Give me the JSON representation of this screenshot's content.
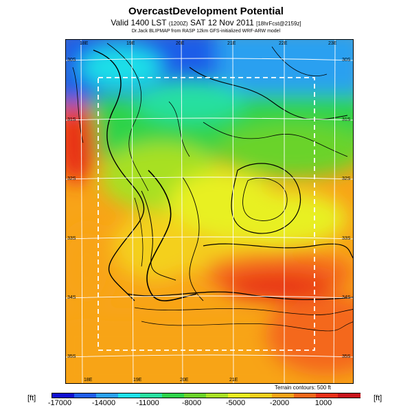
{
  "header": {
    "title": "OvercastDevelopment Potential",
    "subtitle_main": "Valid 1400 LST",
    "subtitle_small1": "(1200Z)",
    "subtitle_date": "SAT 12 Nov 2011",
    "subtitle_small2": "[18hrFcst@2159z]",
    "credit": "Dr.Jack BLIPMAP from RASP 12km GFS-initialized WRF-ARW model"
  },
  "map": {
    "lon_labels_top": [
      "18E",
      "19E",
      "20E",
      "21E",
      "22E",
      "23E"
    ],
    "lon_labels_bottom": [
      "18E",
      "19E",
      "20E",
      "21E"
    ],
    "lat_labels_left": [
      "30S",
      "31S",
      "32S",
      "33S",
      "34S",
      "35S"
    ],
    "lat_labels_right": [
      "30S",
      "31S",
      "32S",
      "33S",
      "34S",
      "35S"
    ],
    "terrain_note": "Terrain contours: 500 ft"
  },
  "colorbar": {
    "unit": "[ft]",
    "labels": [
      "-17000",
      "-14000",
      "-11000",
      "-8000",
      "-5000",
      "-2000",
      "1000"
    ],
    "colors": [
      "#1010d0",
      "#1f5de8",
      "#2aa0f0",
      "#1ee0e8",
      "#28e0a0",
      "#2ed34a",
      "#6ad32a",
      "#a8e024",
      "#e8f020",
      "#f4d01c",
      "#f8a418",
      "#f4681a",
      "#e83018",
      "#c8141c"
    ]
  }
}
